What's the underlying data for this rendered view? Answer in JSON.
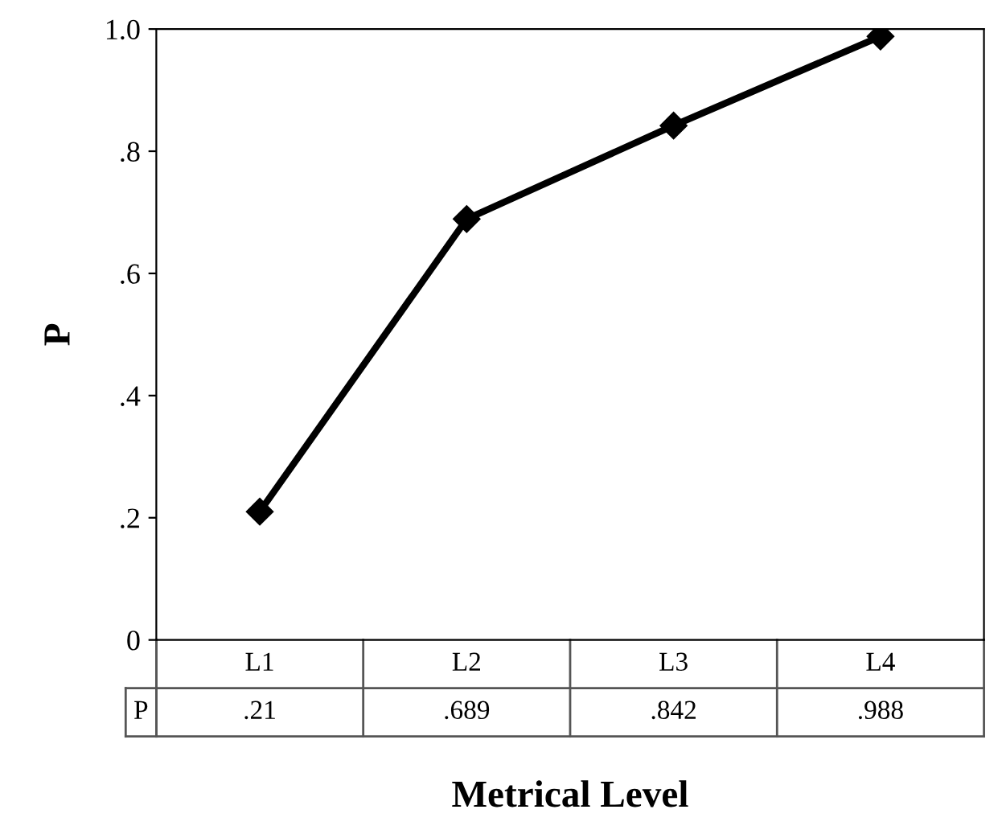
{
  "chart_data": {
    "type": "line",
    "xlabel": "Metrical Level",
    "ylabel": "P",
    "categories": [
      "L1",
      "L2",
      "L3",
      "L4"
    ],
    "series": [
      {
        "name": "P",
        "color": "#000000",
        "values": [
          0.21,
          0.689,
          0.842,
          0.988
        ],
        "value_labels": [
          ".21",
          ".689",
          ".842",
          ".988"
        ]
      }
    ],
    "ylim": [
      0,
      1
    ],
    "yticks": [
      0,
      {
        "value": 0.2,
        "label": ".2"
      },
      {
        "value": 0.4,
        "label": ".4"
      },
      {
        "value": 0.6,
        "label": ".6"
      },
      {
        "value": 0.8,
        "label": ".8"
      },
      {
        "value": 1.0,
        "label": "1.0"
      }
    ],
    "marker": "diamond",
    "line_style": "solid",
    "grid": false,
    "legend": false
  }
}
